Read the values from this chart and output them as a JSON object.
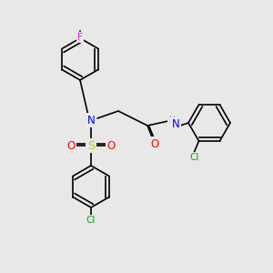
{
  "background_color": "#e8e8e8",
  "bond_color": "#000000",
  "atom_colors": {
    "F": "#ff00ff",
    "N": "#0000ff",
    "O": "#ff0000",
    "S": "#cccc00",
    "Cl": "#00aa00",
    "H": "#7fa8a8",
    "C": "#000000"
  },
  "font_size": 7.5,
  "line_width": 1.2
}
